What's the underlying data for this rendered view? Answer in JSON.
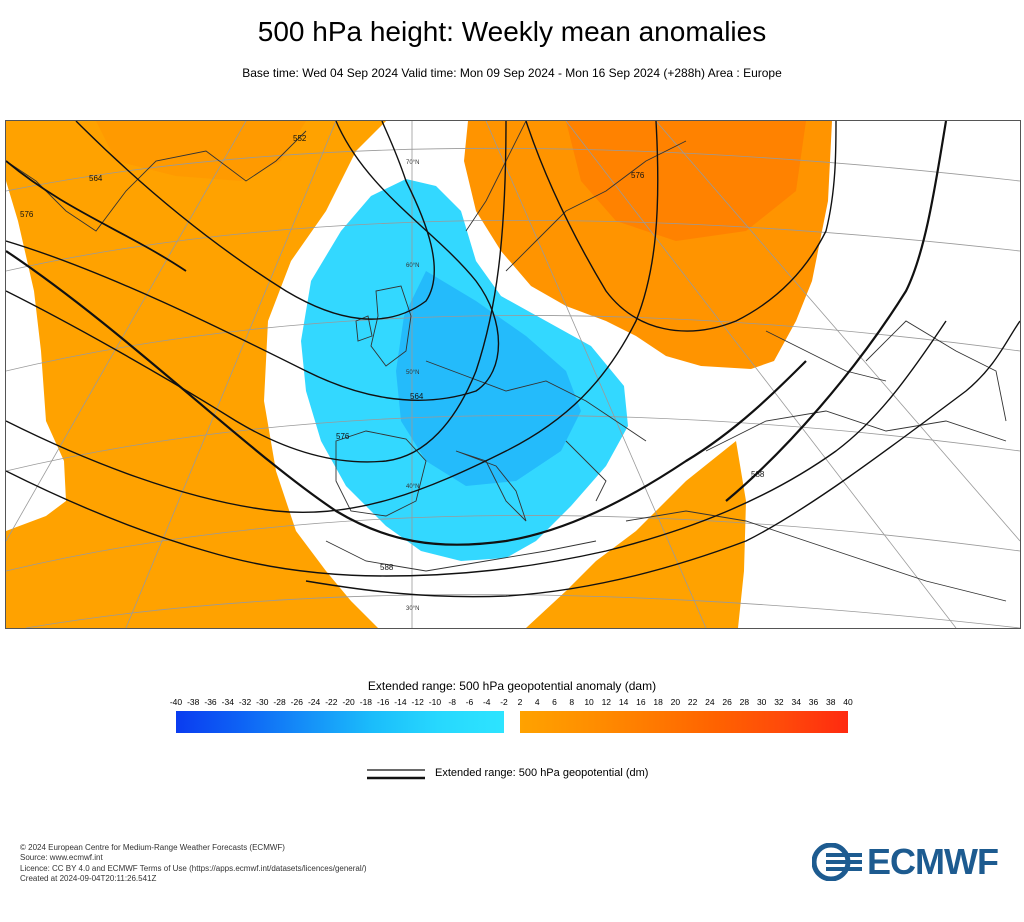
{
  "header": {
    "title": "500 hPa height: Weekly mean anomalies",
    "subtitle": "Base time: Wed 04 Sep 2024 Valid time: Mon 09 Sep 2024 - Mon 16 Sep 2024 (+288h) Area : Europe"
  },
  "map": {
    "region": "Europe",
    "contour_labels": {
      "c552": "552",
      "c564a": "564",
      "c564b": "564",
      "c576a": "576",
      "c576b": "576",
      "c576c": "576",
      "c588a": "588",
      "c588b": "588"
    },
    "graticule_labels": {
      "lat70": "70°N",
      "lat60": "60°N",
      "lat50": "50°N",
      "lat40": "40°N",
      "lat30": "30°N"
    },
    "colors": {
      "negative_anomaly": "#33d8ff",
      "negative_anomaly_core": "#1aa8f8",
      "positive_anomaly": "#ffa200",
      "positive_anomaly_core": "#ff8000",
      "contour": "#111111"
    }
  },
  "legend": {
    "anomaly_title": "Extended range: 500 hPa geopotential anomaly (dam)",
    "ticks": [
      "-40",
      "-38",
      "-36",
      "-34",
      "-32",
      "-30",
      "-28",
      "-26",
      "-24",
      "-22",
      "-20",
      "-18",
      "-16",
      "-14",
      "-12",
      "-10",
      "-8",
      "-6",
      "-4",
      "-2",
      "2",
      "4",
      "6",
      "8",
      "10",
      "12",
      "14",
      "16",
      "18",
      "20",
      "22",
      "24",
      "26",
      "28",
      "30",
      "32",
      "34",
      "36",
      "38",
      "40"
    ],
    "contour_label": "Extended range: 500 hPa geopotential (dm)"
  },
  "footer": {
    "line1": "© 2024 European Centre for Medium-Range Weather Forecasts (ECMWF)",
    "line2": "Source: www.ecmwf.int",
    "line3": "Licence: CC BY 4.0 and ECMWF Terms of Use (https://apps.ecmwf.int/datasets/licences/general/)",
    "line4": "Created at 2024-09-04T20:11:26.541Z"
  },
  "logo": {
    "text": "ECMWF"
  }
}
